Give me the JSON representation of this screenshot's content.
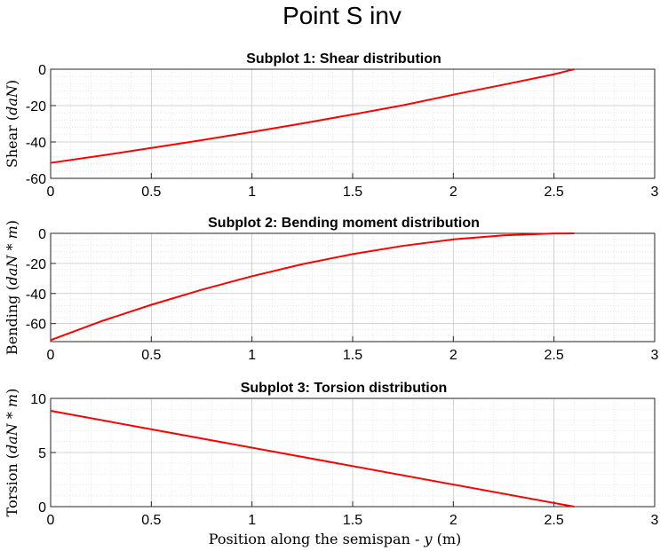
{
  "figure_title": "Point S inv",
  "chart_data": [
    {
      "type": "line",
      "title": "Subplot 1: Shear distribution",
      "ylabel": {
        "prefix": "Shear (",
        "unit": "daN",
        "suffix": ")"
      },
      "xlabel": "",
      "xlim": [
        0,
        3
      ],
      "ylim": [
        -60,
        0
      ],
      "xticks": [
        "0",
        "0.5",
        "1",
        "1.5",
        "2",
        "2.5",
        "3"
      ],
      "yticks": [
        "-60",
        "-40",
        "-20",
        "0"
      ],
      "grid": true,
      "minor_grid": true,
      "color": "#ff0000",
      "x": [
        0,
        0.25,
        0.5,
        0.75,
        1.0,
        1.25,
        1.5,
        1.75,
        2.0,
        2.25,
        2.5,
        2.6
      ],
      "y": [
        -51.5,
        -47.5,
        -43.3,
        -39.0,
        -34.5,
        -29.8,
        -24.9,
        -19.8,
        -14.0,
        -8.5,
        -2.8,
        0
      ]
    },
    {
      "type": "line",
      "title": "Subplot 2: Bending moment distribution",
      "ylabel": {
        "prefix": "Bending (",
        "unit": "daN * m",
        "suffix": ")"
      },
      "xlabel": "",
      "xlim": [
        0,
        3
      ],
      "ylim": [
        -72,
        0
      ],
      "xticks": [
        "0",
        "0.5",
        "1",
        "1.5",
        "2",
        "2.5",
        "3"
      ],
      "yticks": [
        "-60",
        "-40",
        "-20",
        "0"
      ],
      "grid": true,
      "minor_grid": true,
      "color": "#ff0000",
      "x": [
        0,
        0.25,
        0.5,
        0.75,
        1.0,
        1.25,
        1.5,
        1.75,
        2.0,
        2.25,
        2.5,
        2.6
      ],
      "y": [
        -71.0,
        -58.5,
        -47.5,
        -37.5,
        -28.5,
        -20.5,
        -13.8,
        -8.3,
        -4.0,
        -1.3,
        -0.1,
        0
      ]
    },
    {
      "type": "line",
      "title": "Subplot 3: Torsion distribution",
      "ylabel": {
        "prefix": "Torsion (",
        "unit": "daN * m",
        "suffix": ")"
      },
      "xlabel": {
        "prefix": "Position along the semispan - ",
        "var": "y",
        "suffix": " (m)"
      },
      "xlim": [
        0,
        3
      ],
      "ylim": [
        0,
        10
      ],
      "xticks": [
        "0",
        "0.5",
        "1",
        "1.5",
        "2",
        "2.5",
        "3"
      ],
      "yticks": [
        "0",
        "5",
        "10"
      ],
      "grid": true,
      "minor_grid": true,
      "color": "#ff0000",
      "x": [
        0,
        2.6
      ],
      "y": [
        8.85,
        0
      ]
    }
  ]
}
